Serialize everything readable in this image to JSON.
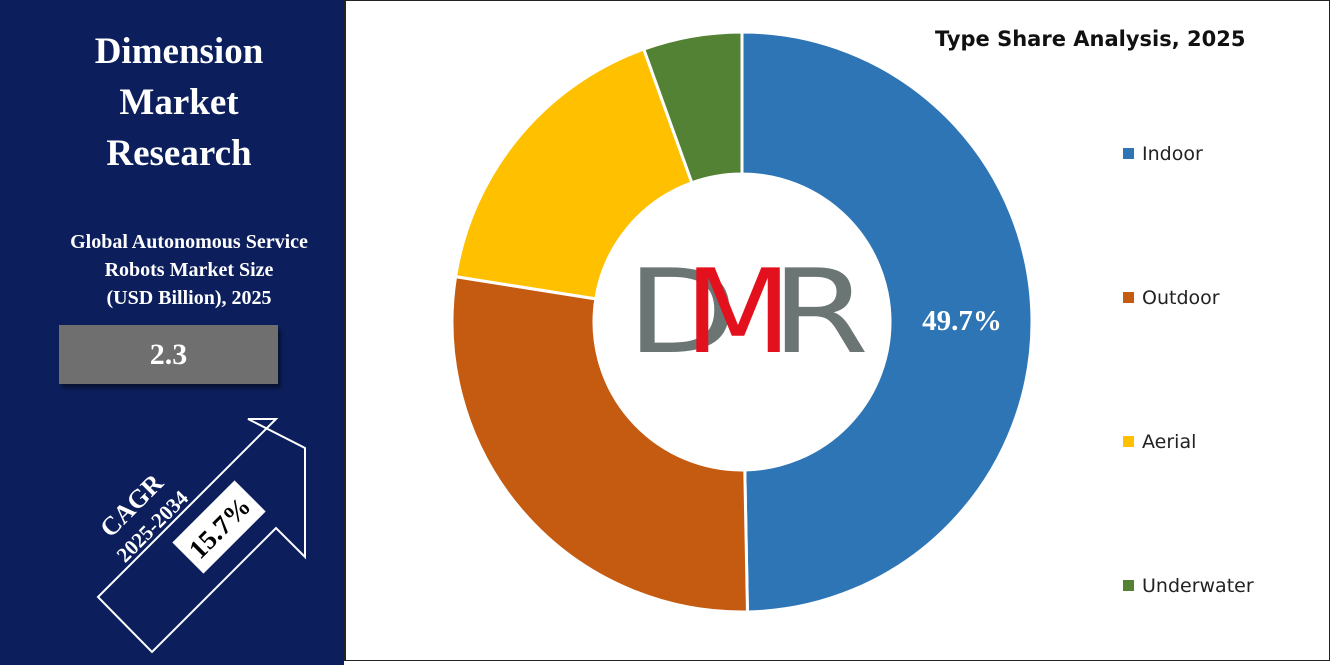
{
  "brand": {
    "title_lines": [
      "Dimension",
      "Market",
      "Research"
    ]
  },
  "market": {
    "subtitle_lines": [
      "Global Autonomous Service",
      "Robots Market Size",
      "(USD Billion), 2025"
    ],
    "value": "2.3"
  },
  "cagr": {
    "label": "CAGR",
    "period": "2025-2034",
    "value": "15.7%"
  },
  "logo": {
    "letters": [
      "D",
      "M",
      "R"
    ],
    "colors": {
      "D": "#6b7574",
      "M": "#e3101e",
      "R": "#6b7574"
    }
  },
  "colors": {
    "panel_bg": "#0c1f5c",
    "value_box": "#6f6f6f"
  },
  "chart_data": {
    "type": "pie",
    "subtype": "donut",
    "title": "Type Share Analysis, 2025",
    "categories": [
      "Indoor",
      "Outdoor",
      "Aerial",
      "Underwater"
    ],
    "values": [
      49.7,
      27.8,
      17.0,
      5.5
    ],
    "colors": [
      "#2e75b6",
      "#c55a11",
      "#ffc000",
      "#548235"
    ],
    "data_labels": [
      "49.7%",
      "",
      "",
      ""
    ],
    "legend_position": "right"
  }
}
